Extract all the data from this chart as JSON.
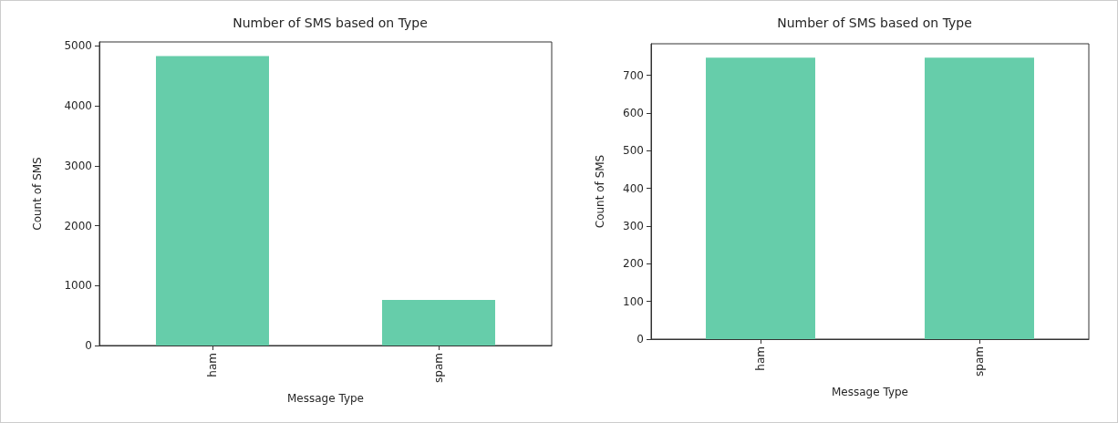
{
  "chart_data": [
    {
      "type": "bar",
      "title": "Number of SMS based on Type",
      "xlabel": "Message Type",
      "ylabel": "Count of SMS",
      "categories": [
        "ham",
        "spam"
      ],
      "values": [
        4830,
        760
      ],
      "color": "#66cdaa",
      "ylim": [
        0,
        5066
      ],
      "yticks": [
        0,
        1000,
        2000,
        3000,
        4000,
        5000
      ],
      "grid": false
    },
    {
      "type": "bar",
      "title": "Number of SMS based on Type",
      "xlabel": "Message Type",
      "ylabel": "Count of SMS",
      "categories": [
        "ham",
        "spam"
      ],
      "values": [
        747,
        747
      ],
      "color": "#66cdaa",
      "ylim": [
        0,
        784
      ],
      "yticks": [
        0,
        100,
        200,
        300,
        400,
        500,
        600,
        700
      ],
      "grid": false
    }
  ]
}
